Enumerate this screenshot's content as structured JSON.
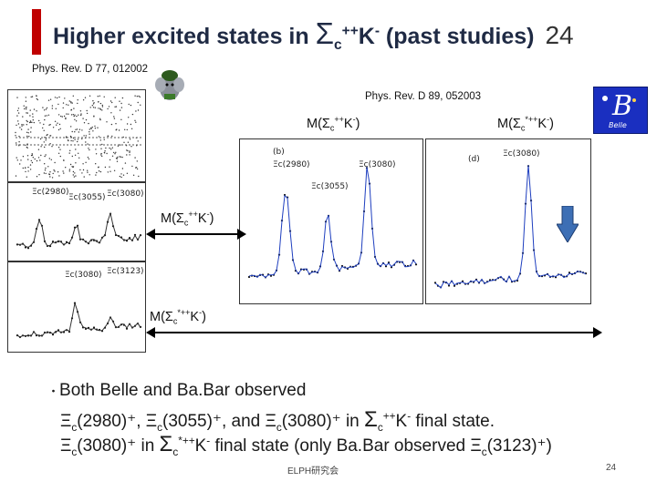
{
  "title": {
    "prefix": "Higher excited states in ",
    "sigma": "Σ",
    "sub": "c",
    "sup": "++",
    "k": "K",
    "ksup": "-",
    "suffix": " (past studies)",
    "slide_number": "24"
  },
  "refs": {
    "babar": "Phys. Rev. D 77, 012002",
    "belle": "Phys. Rev. D 89, 052003"
  },
  "labels": {
    "m": "M(",
    "sigma": "Σ",
    "c": "c",
    "pp": "++",
    "star_pp": "*++",
    "k": "K",
    "minus": "-",
    "close": ")"
  },
  "plot_labels": {
    "xi2980": "Ξc(2980)",
    "xi3055": "Ξc(3055)",
    "xi3080": "Ξc(3080)",
    "xi3123": "Ξc(3123)",
    "panel_b": "(b)",
    "panel_d": "(d)",
    "belle_logo": "Belle"
  },
  "bullets": {
    "marker": "・",
    "line1": "Both Belle and Ba.Bar observed",
    "line2a": "Ξ",
    "line2b": "(2980)⁺, Ξ",
    "line2c": "(3055)⁺, and Ξ",
    "line2d": "(3080)⁺ in ",
    "line2e": " final state.",
    "line3a": "Ξ",
    "line3b": "(3080)⁺ in ",
    "line3c": " final state (only Ba.Bar observed Ξ",
    "line3d": "(3123)⁺)"
  },
  "footer": {
    "text": "ELPH研究会",
    "page": "24"
  },
  "colors": {
    "title_bar": "#c00000",
    "title_text": "#1f2a44",
    "fit_curve": "#1f3fbf",
    "arrow_fill": "#3d6fb5",
    "belle_blue": "#1a2fc0"
  }
}
